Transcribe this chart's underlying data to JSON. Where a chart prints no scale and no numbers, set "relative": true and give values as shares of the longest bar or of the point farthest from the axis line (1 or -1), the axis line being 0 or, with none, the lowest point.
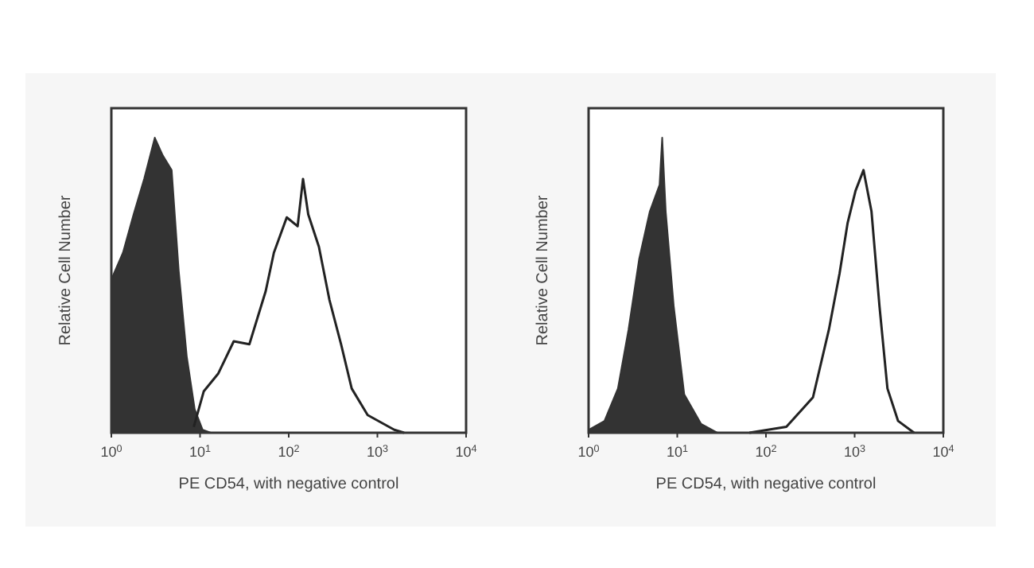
{
  "chart_data": [
    {
      "type": "area",
      "relative": true,
      "log": "x",
      "xlim": [
        1,
        10000
      ],
      "xticks": [
        {
          "value": 1,
          "label": "10$^{0}$"
        },
        {
          "value": 10,
          "label": "10$^{1}$"
        },
        {
          "value": 100,
          "label": "10$^{2}$"
        },
        {
          "value": 1000,
          "label": "10$^{3}$"
        },
        {
          "value": 10000,
          "label": "10$^{4}$"
        }
      ],
      "xlabel": "PE CD54, with negative control",
      "ylabel": "Relative Cell Number",
      "series": [
        {
          "color": "#333333",
          "x": [
            1,
            1.35,
            1.78,
            2.34,
            3.09,
            3.8,
            4.79,
            5.75,
            7.08,
            8.71,
            10.7,
            13.2
          ],
          "values": [
            0.52,
            0.61,
            0.74,
            0.86,
            1,
            0.94,
            0.89,
            0.55,
            0.26,
            0.08,
            0.01,
            0
          ]
        },
        {
          "type": "line",
          "color": "#222222",
          "x": [
            8.5,
            11,
            16,
            24,
            36,
            55,
            68,
            95,
            126,
            145,
            166,
            219,
            288,
            389,
            513,
            776,
            1550,
            2000
          ],
          "values": [
            0.02,
            0.14,
            0.2,
            0.31,
            0.3,
            0.48,
            0.61,
            0.73,
            0.7,
            0.86,
            0.74,
            0.63,
            0.45,
            0.3,
            0.15,
            0.06,
            0.01,
            0
          ]
        }
      ]
    },
    {
      "type": "area",
      "relative": true,
      "log": "x",
      "xlim": [
        1,
        10000
      ],
      "xticks": [
        {
          "value": 1,
          "label": "10$^{0}$"
        },
        {
          "value": 10,
          "label": "10$^{1}$"
        },
        {
          "value": 100,
          "label": "10$^{2}$"
        },
        {
          "value": 1000,
          "label": "10$^{3}$"
        },
        {
          "value": 10000,
          "label": "10$^{4}$"
        }
      ],
      "xlabel": "PE CD54, with negative control",
      "ylabel": "Relative Cell Number",
      "series": [
        {
          "color": "#333333",
          "x": [
            1,
            1.51,
            2.14,
            2.82,
            3.72,
            4.9,
            6.31,
            6.76,
            7.41,
            9.12,
            12,
            18.6,
            28.2
          ],
          "values": [
            0.01,
            0.04,
            0.15,
            0.35,
            0.59,
            0.75,
            0.84,
            1,
            0.75,
            0.43,
            0.13,
            0.03,
            0
          ]
        },
        {
          "type": "line",
          "color": "#222222",
          "x": [
            65,
            170,
            339,
            513,
            676,
            832,
            1023,
            1259,
            1549,
            1905,
            2344,
            3090,
            4677
          ],
          "values": [
            0,
            0.02,
            0.12,
            0.35,
            0.54,
            0.71,
            0.82,
            0.89,
            0.75,
            0.43,
            0.15,
            0.04,
            0
          ]
        }
      ]
    }
  ]
}
